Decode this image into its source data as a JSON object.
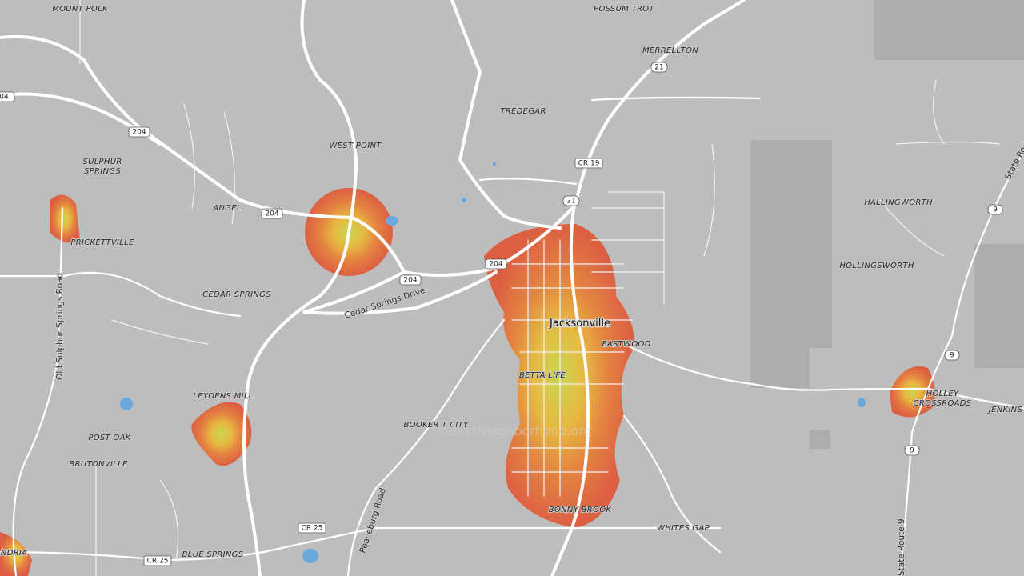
{
  "places": [
    "MOUNT POLK",
    "POSSUM TROT",
    "MERRELLTON",
    "TREDEGAR",
    "WEST POINT",
    [
      "SULPHUR",
      "SPRINGS"
    ],
    "ANGEL",
    "PRICKETTVILLE",
    "HALLINGWORTH",
    "HOLLINGSWORTH",
    "CEDAR SPRINGS",
    "EASTWOOD",
    "BETTA LIFE",
    "LEYDENS MILL",
    [
      "HOLLEY",
      "CROSSROADS"
    ],
    "JENKINS",
    "POST OAK",
    "BOOKER T CITY",
    "BRUTONVILLE",
    "BONNY BROOK",
    "WHITES GAP",
    "BLUE SPRINGS",
    "ANDRIA"
  ],
  "city": "Jacksonville",
  "road_names": [
    "Cedar Springs Drive",
    "Old Sulphur Springs Road",
    "Peaceburg Road",
    "State Route 9",
    "State Route"
  ],
  "shields": [
    "04",
    "204",
    "204",
    "204",
    "204",
    "21",
    "CR 19",
    "21",
    "9",
    "9",
    "9",
    "CR 25",
    "CR 25"
  ],
  "watermark": "©BestNeighborhood.org"
}
